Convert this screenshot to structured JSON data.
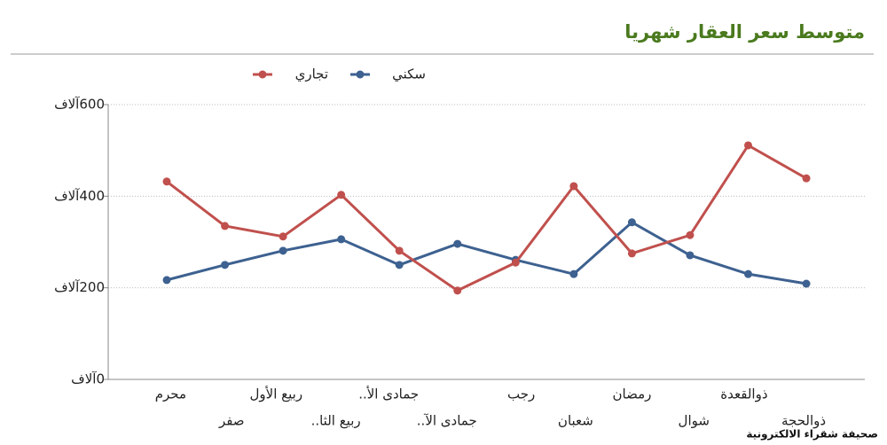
{
  "chart_data": {
    "type": "line",
    "title": "متوسط سعر العقار شهريا",
    "categories": [
      "محرم",
      "صفر",
      "ربيع الأول",
      "ربيع الثا..",
      "جمادى الأ..",
      "جمادى الآ..",
      "رجب",
      "شعبان",
      "رمضان",
      "شوال",
      "ذوالقعدة",
      "ذوالحجة"
    ],
    "series": [
      {
        "name": "سكني",
        "color": "#3d6190",
        "values": [
          217,
          250,
          281,
          306,
          250,
          296,
          261,
          230,
          343,
          271,
          230,
          209
        ]
      },
      {
        "name": "تجاري",
        "color": "#c0504d",
        "values": [
          432,
          335,
          312,
          403,
          281,
          194,
          255,
          422,
          275,
          315,
          511,
          439
        ]
      }
    ],
    "ylim": [
      0,
      600
    ],
    "yticks": [
      {
        "value": 0,
        "label": "0آلاف"
      },
      {
        "value": 200,
        "label": "200آلاف"
      },
      {
        "value": 400,
        "label": "400آلاف"
      },
      {
        "value": 600,
        "label": "600آلاف"
      }
    ],
    "grid": true,
    "legend": "top",
    "source": "صحيفة شقراء الالكترونية"
  }
}
